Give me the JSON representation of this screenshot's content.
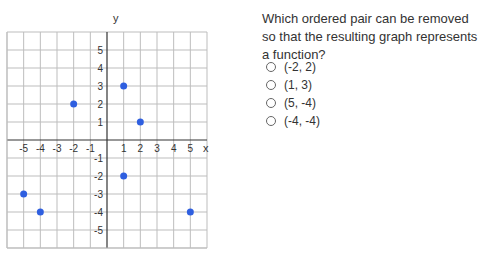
{
  "chart_data": {
    "type": "scatter",
    "x_label": "x",
    "y_label": "y",
    "x": [
      -5,
      -4,
      -2,
      1,
      1,
      2,
      5
    ],
    "values": [
      -3,
      -4,
      2,
      3,
      -2,
      1,
      -4
    ],
    "color": "#2f5fe0",
    "marker": "circle",
    "xlim": [
      -6,
      6
    ],
    "ylim": [
      -6,
      6
    ],
    "xticks": [
      -5,
      -4,
      -3,
      -2,
      -1,
      1,
      2,
      3,
      4,
      5
    ],
    "yticks": [
      -5,
      -4,
      -3,
      -2,
      -1,
      1,
      2,
      3,
      4,
      5
    ],
    "grid": true
  },
  "question": "Which ordered pair can be removed so that the resulting graph represents a function?",
  "options": [
    "(-2, 2)",
    "(1, 3)",
    "(5, -4)",
    "(-4, -4)"
  ]
}
